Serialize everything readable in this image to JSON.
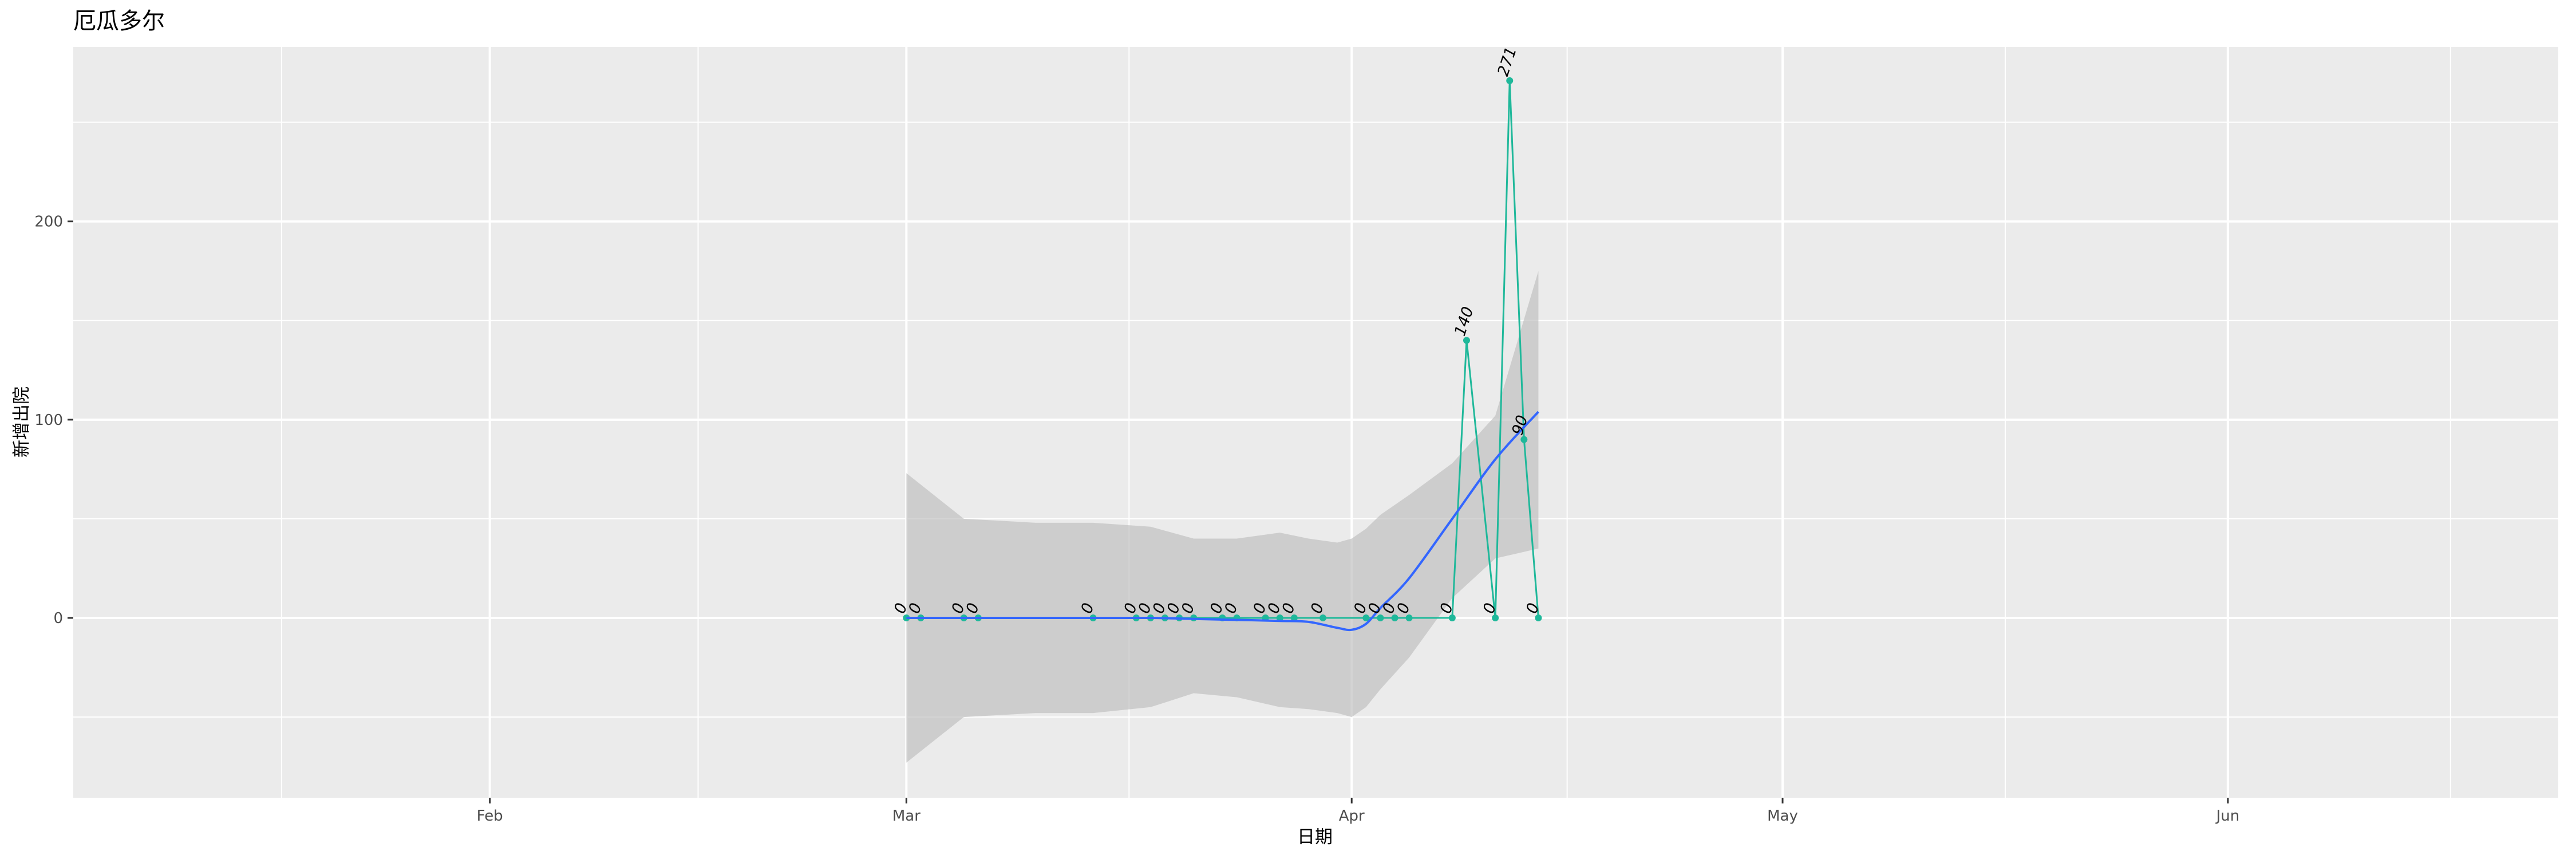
{
  "chart_data": {
    "type": "line",
    "title": "厄瓜多尔",
    "xlabel": "日期",
    "ylabel": "新增出院",
    "xlim": [
      "2020-01-03",
      "2020-06-24"
    ],
    "ylim": [
      -90.7,
      288
    ],
    "x_ticks": [
      {
        "date": "2020-02-01",
        "label": "Feb"
      },
      {
        "date": "2020-03-01",
        "label": "Mar"
      },
      {
        "date": "2020-04-01",
        "label": "Apr"
      },
      {
        "date": "2020-05-01",
        "label": "May"
      },
      {
        "date": "2020-06-01",
        "label": "Jun"
      }
    ],
    "y_ticks": [
      0,
      100,
      200
    ],
    "y_tick_labels": [
      "0",
      "100",
      "200"
    ],
    "grid": true,
    "colors": {
      "series": "#1fb89a",
      "smooth": "#3366ff",
      "band": "#bdbdbd",
      "panel": "#ebebeb"
    },
    "series": [
      {
        "x": [
          "2020-03-01",
          "2020-03-02",
          "2020-03-05",
          "2020-03-06",
          "2020-03-14",
          "2020-03-17",
          "2020-03-18",
          "2020-03-19",
          "2020-03-20",
          "2020-03-21",
          "2020-03-23",
          "2020-03-24",
          "2020-03-26",
          "2020-03-27",
          "2020-03-28",
          "2020-03-30",
          "2020-04-02",
          "2020-04-03",
          "2020-04-04",
          "2020-04-05",
          "2020-04-08",
          "2020-04-09",
          "2020-04-11",
          "2020-04-12",
          "2020-04-13",
          "2020-04-14"
        ],
        "y": [
          0,
          0,
          0,
          0,
          0,
          0,
          0,
          0,
          0,
          0,
          0,
          0,
          0,
          0,
          0,
          0,
          0,
          0,
          0,
          0,
          0,
          140,
          0,
          271,
          90,
          0
        ],
        "labels": [
          "0",
          "0",
          "0",
          "0",
          "0",
          "0",
          "0",
          "0",
          "0",
          "0",
          "0",
          "0",
          "0",
          "0",
          "0",
          "0",
          "0",
          "0",
          "0",
          "0",
          "0",
          "140",
          "0",
          "271",
          "90",
          "0"
        ]
      }
    ],
    "smooth": {
      "x": [
        "2020-03-01",
        "2020-03-05",
        "2020-03-10",
        "2020-03-14",
        "2020-03-18",
        "2020-03-21",
        "2020-03-24",
        "2020-03-27",
        "2020-03-29",
        "2020-03-31",
        "2020-04-01",
        "2020-04-02",
        "2020-04-03",
        "2020-04-05",
        "2020-04-08",
        "2020-04-11",
        "2020-04-14"
      ],
      "y": [
        0,
        0,
        0,
        0,
        0,
        -0.5,
        -1,
        -1.5,
        -2,
        -5,
        -6,
        -3,
        5,
        20,
        50,
        80,
        104
      ],
      "lower": [
        -73,
        -50,
        -48,
        -48,
        -45,
        -38,
        -40,
        -45,
        -46,
        -48,
        -50,
        -45,
        -36,
        -20,
        10,
        30,
        35
      ],
      "upper": [
        73,
        50,
        48,
        48,
        46,
        40,
        40,
        43,
        40,
        38,
        40,
        45,
        52,
        62,
        78,
        102,
        175
      ]
    }
  }
}
